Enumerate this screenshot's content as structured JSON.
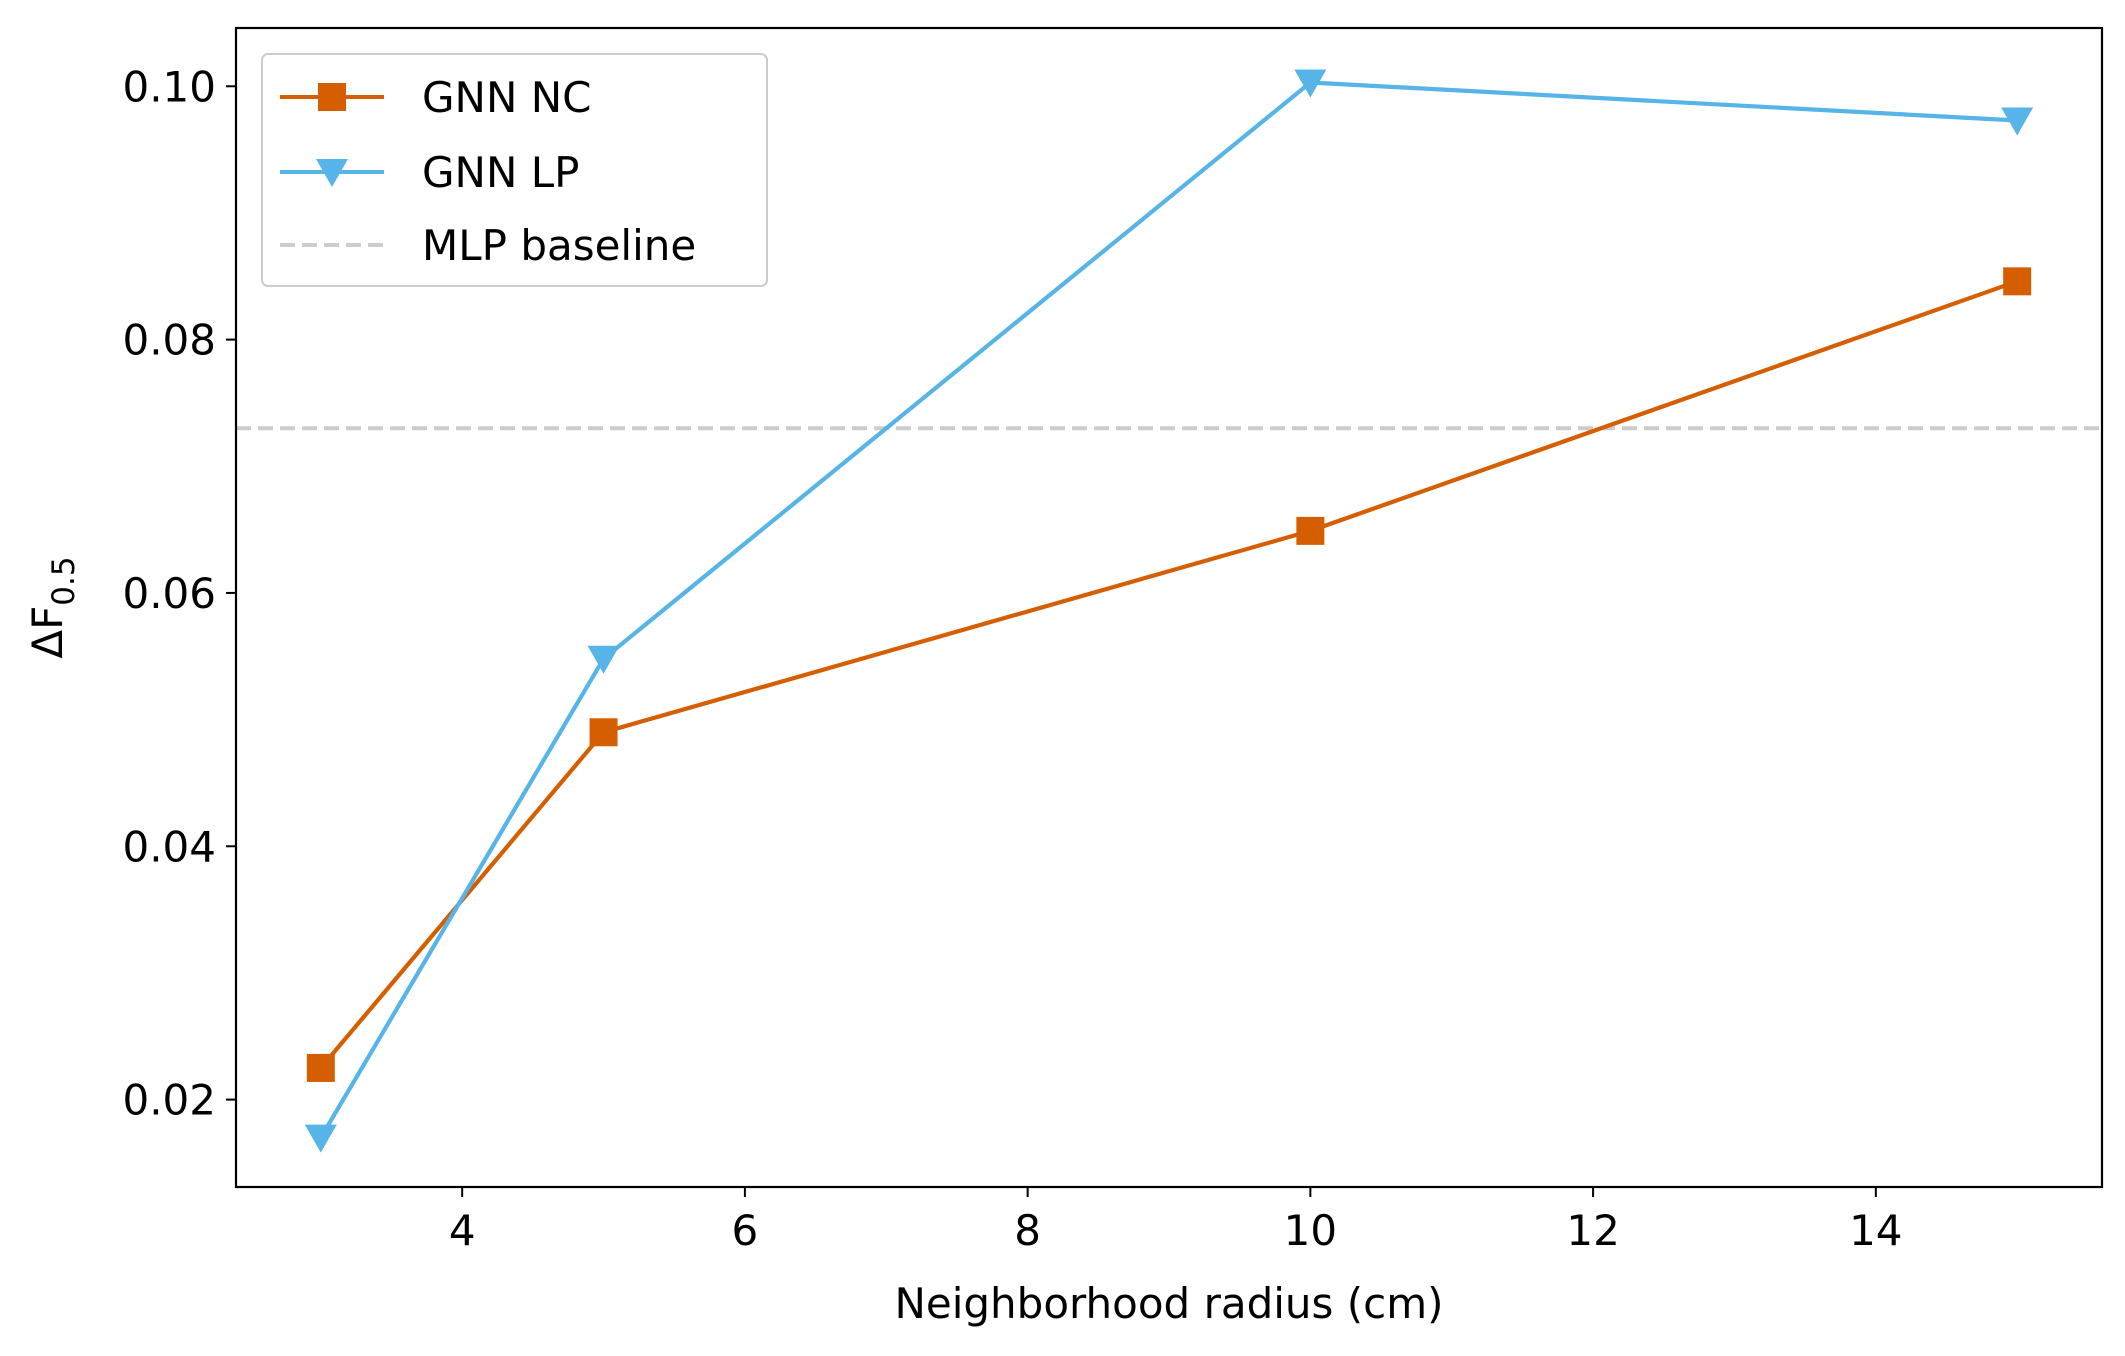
{
  "chart_data": {
    "type": "line",
    "title": "",
    "xlabel": "Neighborhood radius (cm)",
    "ylabel": {
      "main": "ΔF",
      "subscript": "0.5"
    },
    "xlim": [
      2.4,
      15.6
    ],
    "ylim": [
      0.0131,
      0.1046
    ],
    "xticks": [
      4,
      6,
      8,
      10,
      12,
      14
    ],
    "xtick_labels": [
      "4",
      "6",
      "8",
      "10",
      "12",
      "14"
    ],
    "yticks": [
      0.02,
      0.04,
      0.06,
      0.08,
      0.1
    ],
    "ytick_labels": [
      "0.02",
      "0.04",
      "0.06",
      "0.08",
      "0.10"
    ],
    "grid": false,
    "legend_position": "top-left",
    "x": [
      3,
      5,
      10,
      15
    ],
    "series": [
      {
        "name": "GNN NC",
        "values": [
          0.0225,
          0.049,
          0.0649,
          0.0846
        ],
        "color": "#d55e00",
        "marker": "square",
        "style": "solid"
      },
      {
        "name": "GNN LP",
        "values": [
          0.017,
          0.0548,
          0.1003,
          0.0973
        ],
        "color": "#56b4e9",
        "marker": "triangle-down",
        "style": "solid"
      }
    ],
    "reference_lines": [
      {
        "name": "MLP baseline",
        "value": 0.073,
        "color": "#cccccc",
        "style": "dashed"
      }
    ]
  }
}
